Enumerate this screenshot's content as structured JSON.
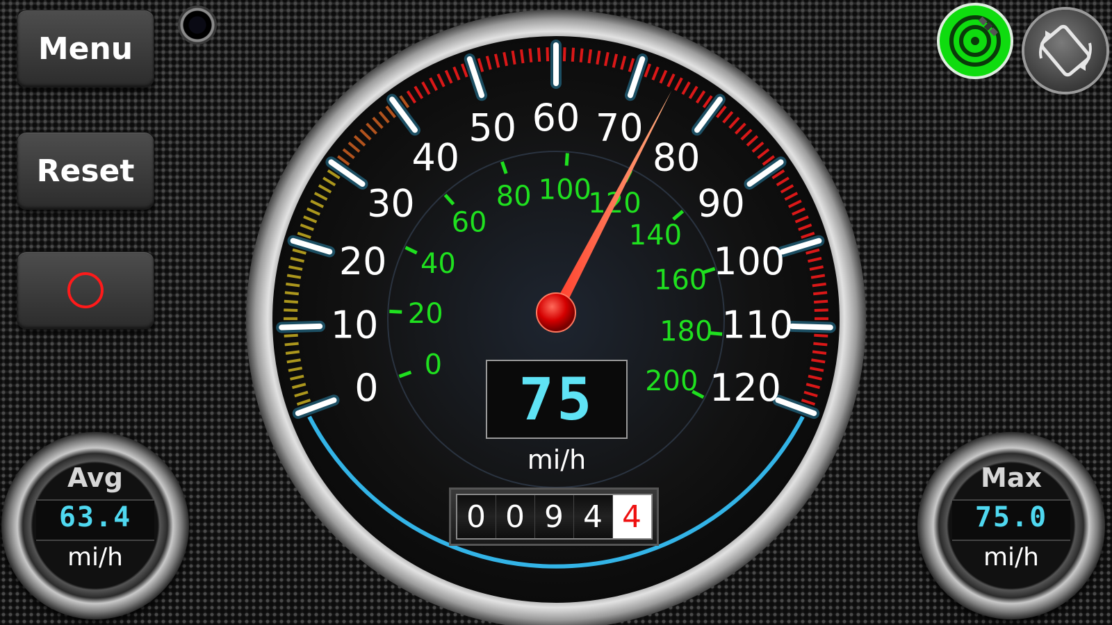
{
  "buttons": {
    "menu_label": "Menu",
    "reset_label": "Reset",
    "record_icon": "record-circle-icon"
  },
  "toolbar_icons": {
    "camera": "camera-lens-icon",
    "gps": "gps-satellite-icon",
    "rotate": "screen-rotate-icon",
    "gps_color": "#0fdc0f"
  },
  "gauge": {
    "mph_ticks": [
      "0",
      "10",
      "20",
      "30",
      "40",
      "50",
      "60",
      "70",
      "80",
      "90",
      "100",
      "110",
      "120"
    ],
    "kmh_ticks": [
      "0",
      "20",
      "40",
      "60",
      "80",
      "100",
      "120",
      "140",
      "160",
      "180",
      "200"
    ],
    "needle_value_mph": 75,
    "speed_display": "75",
    "speed_unit": "mi/h",
    "accent_red": "#ff1a1a",
    "accent_green": "#1fe01f",
    "accent_cyan": "#5fe3f5"
  },
  "odometer": {
    "digits": [
      "0",
      "0",
      "9",
      "4",
      "4"
    ]
  },
  "avg": {
    "label": "Avg",
    "value": "63.4",
    "unit": "mi/h"
  },
  "max": {
    "label": "Max",
    "value": "75.0",
    "unit": "mi/h"
  }
}
